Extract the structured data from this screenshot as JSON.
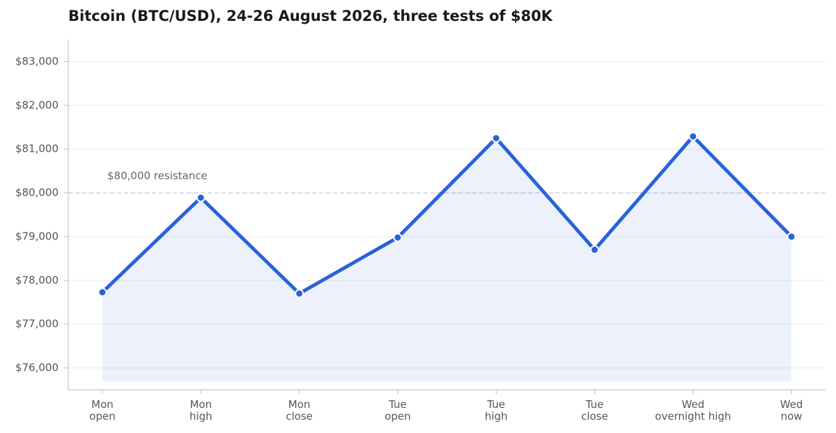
{
  "chart_data": {
    "type": "line",
    "title": "Bitcoin (BTC/USD), 24-26 August 2026, three tests of $80K",
    "categories": [
      "Mon\nopen",
      "Mon\nhigh",
      "Mon\nclose",
      "Tue\nopen",
      "Tue\nhigh",
      "Tue\nclose",
      "Wed\novernight high",
      "Wed\nnow"
    ],
    "series": [
      {
        "name": "BTC/USD",
        "color": "#2962d9",
        "values": [
          77730,
          79890,
          77700,
          78980,
          81250,
          78700,
          81290,
          79000
        ]
      }
    ],
    "area": true,
    "ylim": [
      75500,
      83500
    ],
    "yticks": [
      {
        "value": 76000,
        "label": "$76,000"
      },
      {
        "value": 77000,
        "label": "$77,000"
      },
      {
        "value": 78000,
        "label": "$78,000"
      },
      {
        "value": 79000,
        "label": "$79,000"
      },
      {
        "value": 80000,
        "label": "$80,000"
      },
      {
        "value": 81000,
        "label": "$81,000"
      },
      {
        "value": 82000,
        "label": "$82,000"
      },
      {
        "value": 83000,
        "label": "$83,000"
      }
    ],
    "grid": true,
    "reference_line": {
      "value": 80000,
      "label": "$80,000 resistance"
    }
  }
}
